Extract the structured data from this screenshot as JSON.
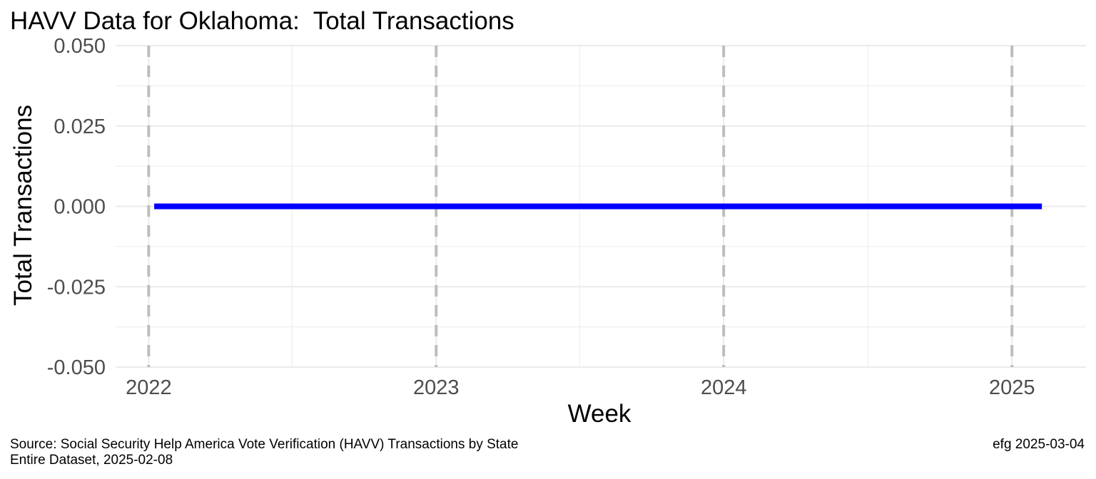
{
  "chart_data": {
    "type": "line",
    "title": "HAVV Data for Oklahoma:  Total Transactions",
    "xlabel": "Week",
    "ylabel": "Total Transactions",
    "x_ticks": [
      "2022",
      "2023",
      "2024",
      "2025"
    ],
    "y_ticks": [
      "0.050",
      "0.025",
      "0.000",
      "-0.025",
      "-0.050"
    ],
    "xlim": [
      "2021-11-20",
      "2025-04-05"
    ],
    "ylim": [
      -0.05,
      0.05
    ],
    "year_markers": [
      "2022-01-01",
      "2023-01-01",
      "2024-01-01",
      "2025-01-01"
    ],
    "series": [
      {
        "color": "#0000ff",
        "x": [
          "2022-01-08",
          "2025-02-08"
        ],
        "y": [
          0,
          0
        ]
      }
    ],
    "grid": true,
    "marker_line_color": "#bdbdbd",
    "grid_color": "#ebebeb"
  },
  "caption": {
    "source_line1": "Source:  Social Security Help America Vote Verification (HAVV) Transactions by State",
    "source_line2": "Entire Dataset, 2025-02-08",
    "credit": "efg 2025-03-04"
  }
}
